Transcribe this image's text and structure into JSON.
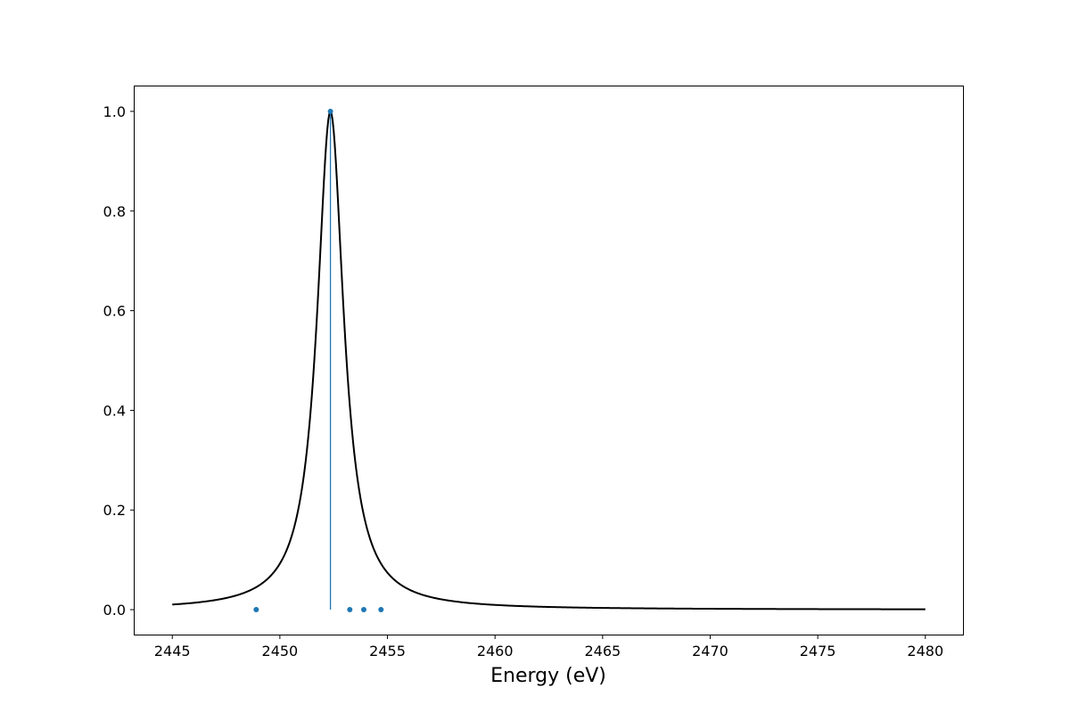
{
  "chart_data": {
    "type": "line",
    "title": "",
    "xlabel": "Energy (eV)",
    "ylabel": "",
    "xlim": [
      2443.25,
      2481.75
    ],
    "ylim": [
      -0.05,
      1.05
    ],
    "xticks": [
      2445,
      2450,
      2455,
      2460,
      2465,
      2470,
      2475,
      2480
    ],
    "xtick_labels": [
      "2445",
      "2450",
      "2455",
      "2460",
      "2465",
      "2470",
      "2475",
      "2480"
    ],
    "yticks": [
      0.0,
      0.2,
      0.4,
      0.6,
      0.8,
      1.0
    ],
    "ytick_labels": [
      "0.0",
      "0.2",
      "0.4",
      "0.6",
      "0.8",
      "1.0"
    ],
    "grid": false,
    "legend": "none",
    "series": [
      {
        "type": "line",
        "color": "#000000",
        "shape": "lorentzian",
        "center": 2452.35,
        "hwhm": 0.75,
        "amplitude": 1.0,
        "x_range": [
          2445,
          2480
        ]
      },
      {
        "type": "stem",
        "color": "#1f77b4",
        "x": [
          2448.9,
          2452.35,
          2453.25,
          2453.9,
          2454.7
        ],
        "y": [
          0.0,
          1.0,
          0.0,
          0.0,
          0.0
        ]
      }
    ]
  },
  "colors": {
    "axes": "#000000",
    "curve": "#000000",
    "stems": "#1f77b4",
    "background": "#ffffff"
  }
}
